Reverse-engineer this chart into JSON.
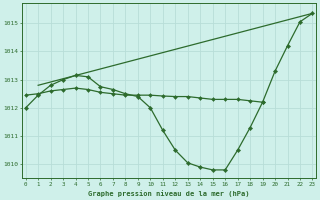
{
  "background_color": "#cff0ea",
  "grid_color": "#b8ddd8",
  "line_color": "#2d6b2d",
  "marker_color": "#2d6b2d",
  "xlabel": "Graphe pression niveau de la mer (hPa)",
  "ylim": [
    1009.5,
    1015.7
  ],
  "xlim": [
    -0.3,
    23.3
  ],
  "yticks": [
    1010,
    1011,
    1012,
    1013,
    1014,
    1015
  ],
  "xticks": [
    0,
    1,
    2,
    3,
    4,
    5,
    6,
    7,
    8,
    9,
    10,
    11,
    12,
    13,
    14,
    15,
    16,
    17,
    18,
    19,
    20,
    21,
    22,
    23
  ],
  "series": [
    {
      "x": [
        0,
        1,
        2,
        3,
        4,
        5,
        6,
        7,
        8,
        9,
        10,
        11,
        12,
        13,
        14,
        15,
        16,
        17,
        18,
        19,
        20,
        21,
        22,
        23
      ],
      "y": [
        1012.0,
        1012.45,
        1012.8,
        1013.0,
        1013.15,
        1013.1,
        1012.75,
        1012.65,
        1012.5,
        1012.4,
        1012.0,
        1011.2,
        1010.5,
        1010.05,
        1009.9,
        1009.8,
        1009.8,
        1010.5,
        1011.3,
        1012.2,
        1013.3,
        1014.2,
        1015.05,
        1015.35
      ]
    },
    {
      "x": [
        1,
        23
      ],
      "y": [
        1012.8,
        1015.35
      ]
    },
    {
      "x": [
        0,
        1,
        2,
        3,
        4,
        5,
        6,
        7,
        8,
        9,
        10,
        11,
        12,
        13,
        14,
        15,
        16,
        17,
        18,
        19
      ],
      "y": [
        1012.45,
        1012.5,
        1012.6,
        1012.65,
        1012.7,
        1012.65,
        1012.55,
        1012.5,
        1012.45,
        1012.45,
        1012.45,
        1012.42,
        1012.4,
        1012.4,
        1012.35,
        1012.3,
        1012.3,
        1012.3,
        1012.25,
        1012.2
      ]
    }
  ]
}
